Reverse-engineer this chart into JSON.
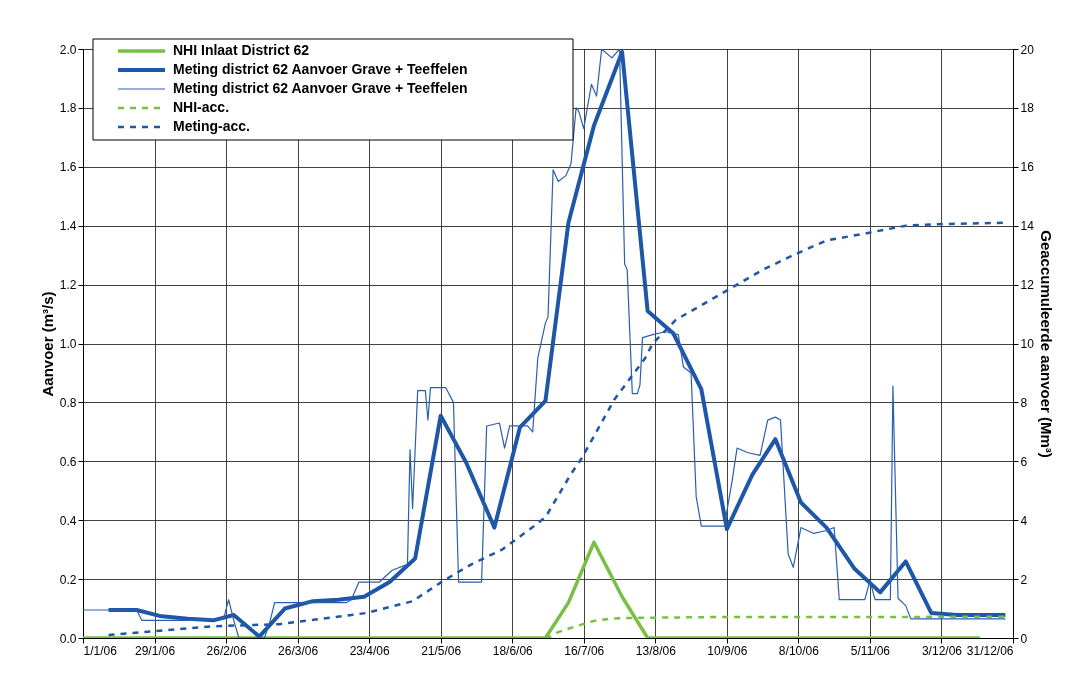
{
  "chart_data": {
    "type": "line",
    "ylabel": "Aanvoer (m³/s)",
    "y2label": "Geaccumuleerde aanvoer (Mm³)",
    "xlim": [
      "2006-01-01",
      "2006-12-31"
    ],
    "xticks": [
      {
        "value": "2006-01-01",
        "label": "1/1/06"
      },
      {
        "value": "2006-01-29",
        "label": "29/1/06"
      },
      {
        "value": "2006-02-26",
        "label": "26/2/06"
      },
      {
        "value": "2006-03-26",
        "label": "26/3/06"
      },
      {
        "value": "2006-04-23",
        "label": "23/4/06"
      },
      {
        "value": "2006-05-21",
        "label": "21/5/06"
      },
      {
        "value": "2006-06-18",
        "label": "18/6/06"
      },
      {
        "value": "2006-07-16",
        "label": "16/7/06"
      },
      {
        "value": "2006-08-13",
        "label": "13/8/06"
      },
      {
        "value": "2006-09-10",
        "label": "10/9/06"
      },
      {
        "value": "2006-10-08",
        "label": "8/10/06"
      },
      {
        "value": "2006-11-05",
        "label": "5/11/06"
      },
      {
        "value": "2006-12-03",
        "label": "3/12/06"
      },
      {
        "value": "2006-12-31",
        "label": "31/12/06"
      }
    ],
    "ylim": [
      0,
      2
    ],
    "yticks": [
      {
        "value": 0,
        "label": "0.0"
      },
      0.2,
      0.4,
      0.6,
      0.8,
      {
        "value": 1,
        "label": "1.0"
      },
      1.2,
      1.4,
      1.6,
      1.8,
      {
        "value": 2,
        "label": "2.0"
      }
    ],
    "y2lim": [
      0,
      20
    ],
    "y2ticks": [
      0,
      2,
      4,
      6,
      8,
      10,
      12,
      14,
      16,
      18,
      20
    ],
    "grid": true,
    "legend": "top left",
    "marker": "none",
    "series": [
      {
        "name": "NHI Inlaat District 62",
        "color": "#77c043",
        "line_style": "solid",
        "x": [
          "2006-01-01",
          "2006-07-01",
          "2006-07-10",
          "2006-07-20",
          "2006-07-31",
          "2006-08-10",
          "2006-12-18"
        ],
        "values": [
          0,
          0,
          0.12,
          0.325,
          0.14,
          0,
          0
        ]
      },
      {
        "name": "Meting district 62  Aanvoer Grave + Teeffelen",
        "color": "#1f57a8",
        "line_style": "solid",
        "x": [
          "2006-01-11",
          "2006-01-22",
          "2006-01-31",
          "2006-02-11",
          "2006-02-21",
          "2006-03-01",
          "2006-03-11",
          "2006-03-21",
          "2006-04-01",
          "2006-04-11",
          "2006-04-21",
          "2006-05-01",
          "2006-05-11",
          "2006-05-21",
          "2006-05-31",
          "2006-06-11",
          "2006-06-21",
          "2006-07-01",
          "2006-07-10",
          "2006-07-20",
          "2006-07-31",
          "2006-08-10",
          "2006-08-20",
          "2006-08-31",
          "2006-09-10",
          "2006-09-20",
          "2006-09-29",
          "2006-10-09",
          "2006-10-19",
          "2006-10-30",
          "2006-11-09",
          "2006-11-19",
          "2006-11-29",
          "2006-12-09",
          "2006-12-28"
        ],
        "values": [
          0.095,
          0.095,
          0.075,
          0.065,
          0.06,
          0.078,
          0.005,
          0.1,
          0.125,
          0.13,
          0.14,
          0.19,
          0.27,
          0.755,
          0.595,
          0.375,
          0.715,
          0.805,
          1.41,
          1.74,
          1.99,
          1.11,
          1.035,
          0.845,
          0.37,
          0.555,
          0.675,
          0.46,
          0.375,
          0.235,
          0.155,
          0.26,
          0.085,
          0.078,
          0.078
        ]
      },
      {
        "name": "Meting district 62  Aanvoer Grave + Teeffelen",
        "color": "#2a5fb0",
        "line_style": "solid",
        "x": [
          "2006-01-01",
          "2006-01-22",
          "2006-01-24",
          "2006-02-10",
          "2006-02-25",
          "2006-02-27",
          "2006-03-01",
          "2006-03-03",
          "2006-03-13",
          "2006-03-15",
          "2006-03-17",
          "2006-04-14",
          "2006-04-16",
          "2006-04-19",
          "2006-04-27",
          "2006-05-02",
          "2006-05-08",
          "2006-05-09",
          "2006-05-10",
          "2006-05-12",
          "2006-05-15",
          "2006-05-16",
          "2006-05-17",
          "2006-05-23",
          "2006-05-26",
          "2006-05-28",
          "2006-06-06",
          "2006-06-08",
          "2006-06-13",
          "2006-06-15",
          "2006-06-17",
          "2006-06-24",
          "2006-06-26",
          "2006-06-28",
          "2006-07-01",
          "2006-07-02",
          "2006-07-04",
          "2006-07-06",
          "2006-07-09",
          "2006-07-11",
          "2006-07-13",
          "2006-07-14",
          "2006-07-16",
          "2006-07-19",
          "2006-07-21",
          "2006-07-23",
          "2006-07-27",
          "2006-07-30",
          "2006-08-01",
          "2006-08-02",
          "2006-08-03",
          "2006-08-04",
          "2006-08-06",
          "2006-08-07",
          "2006-08-08",
          "2006-08-12",
          "2006-08-17",
          "2006-08-22",
          "2006-08-24",
          "2006-08-27",
          "2006-08-29",
          "2006-08-31",
          "2006-09-09",
          "2006-09-12",
          "2006-09-14",
          "2006-09-18",
          "2006-09-23",
          "2006-09-26",
          "2006-09-29",
          "2006-10-01",
          "2006-10-04",
          "2006-10-06",
          "2006-10-09",
          "2006-10-14",
          "2006-10-19",
          "2006-10-22",
          "2006-10-24",
          "2006-11-03",
          "2006-11-05",
          "2006-11-07",
          "2006-11-13",
          "2006-11-14",
          "2006-11-16",
          "2006-11-19",
          "2006-11-21",
          "2006-12-28"
        ],
        "values": [
          0.095,
          0.095,
          0.06,
          0.06,
          0.065,
          0.13,
          0.06,
          0.0,
          0.0,
          0.05,
          0.12,
          0.12,
          0.13,
          0.19,
          0.19,
          0.23,
          0.25,
          0.64,
          0.44,
          0.84,
          0.84,
          0.74,
          0.85,
          0.85,
          0.8,
          0.19,
          0.19,
          0.72,
          0.73,
          0.645,
          0.72,
          0.72,
          0.7,
          0.95,
          1.07,
          1.09,
          1.59,
          1.55,
          1.57,
          1.61,
          1.8,
          1.79,
          1.73,
          1.88,
          1.84,
          2.0,
          1.97,
          2.0,
          1.27,
          1.25,
          1.04,
          0.83,
          0.83,
          0.86,
          1.02,
          1.03,
          1.04,
          1.03,
          0.92,
          0.9,
          0.48,
          0.38,
          0.38,
          0.53,
          0.645,
          0.63,
          0.62,
          0.74,
          0.75,
          0.74,
          0.285,
          0.24,
          0.375,
          0.355,
          0.365,
          0.375,
          0.13,
          0.13,
          0.195,
          0.13,
          0.13,
          0.855,
          0.135,
          0.11,
          0.065,
          0.065
        ]
      },
      {
        "name": "NHI-acc.",
        "color": "#77c043",
        "line_style": "dashed",
        "axis": "y2",
        "x": [
          "2006-07-01",
          "2006-07-03",
          "2006-07-06",
          "2006-07-13",
          "2006-07-20",
          "2006-07-27",
          "2006-08-01",
          "2006-09-03",
          "2006-12-28"
        ],
        "values": [
          0,
          0.05,
          0.2,
          0.4,
          0.58,
          0.66,
          0.68,
          0.71,
          0.72
        ]
      },
      {
        "name": "Meting-acc.",
        "color": "#1f57a8",
        "line_style": "dashed",
        "axis": "y2",
        "x": [
          "2006-01-11",
          "2006-02-21",
          "2006-03-19",
          "2006-04-22",
          "2006-05-10",
          "2006-05-22",
          "2006-06-02",
          "2006-06-14",
          "2006-06-25",
          "2006-07-01",
          "2006-07-11",
          "2006-07-15",
          "2006-07-28",
          "2006-08-09",
          "2006-08-12",
          "2006-08-21",
          "2006-09-08",
          "2006-09-24",
          "2006-10-06",
          "2006-10-19",
          "2006-11-01",
          "2006-11-19",
          "2006-12-01",
          "2006-12-28"
        ],
        "values": [
          0.1,
          0.4,
          0.47,
          0.85,
          1.25,
          1.94,
          2.5,
          3.0,
          3.7,
          4.1,
          5.57,
          6.08,
          8.1,
          9.5,
          10.0,
          10.8,
          11.7,
          12.5,
          13.0,
          13.5,
          13.7,
          14.0,
          14.05,
          14.1
        ]
      }
    ]
  }
}
